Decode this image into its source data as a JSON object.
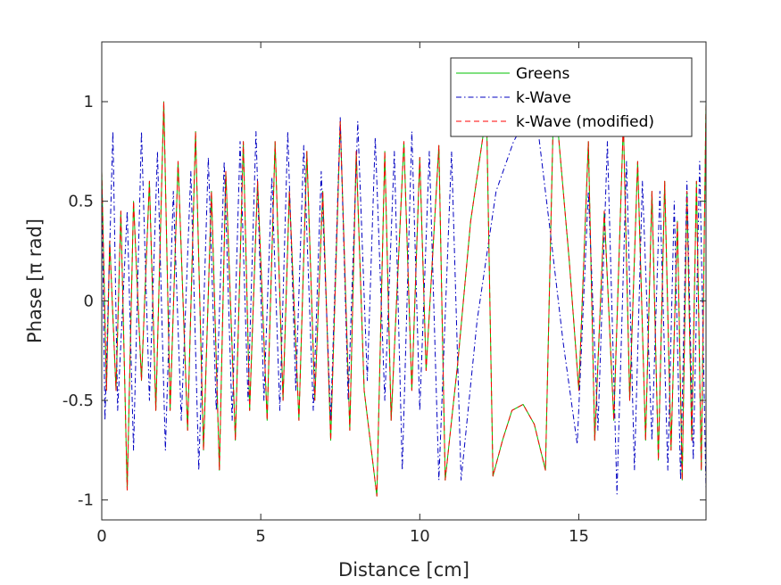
{
  "chart_data": {
    "type": "line",
    "xlabel": "Distance [cm]",
    "ylabel": "Phase [π rad]",
    "xlim": [
      0,
      19
    ],
    "ylim": [
      -1.1,
      1.3
    ],
    "xticks": [
      0,
      5,
      10,
      15
    ],
    "xtick_labels": [
      "0",
      "5",
      "10",
      "15"
    ],
    "yticks": [
      -1,
      -0.5,
      0,
      0.5,
      1
    ],
    "ytick_labels": [
      "-1",
      "-0.5",
      "0",
      "0.5",
      "1"
    ],
    "grid": false,
    "legend_position": "top-right",
    "series": [
      {
        "name": "Greens",
        "color": "#00c000",
        "style": "solid",
        "x": [
          0,
          0.15,
          0.25,
          0.45,
          0.6,
          0.8,
          1.0,
          1.25,
          1.5,
          1.7,
          1.95,
          2.15,
          2.4,
          2.7,
          2.95,
          3.2,
          3.45,
          3.7,
          3.9,
          4.2,
          4.45,
          4.65,
          4.9,
          5.2,
          5.45,
          5.7,
          5.9,
          6.2,
          6.45,
          6.7,
          6.95,
          7.2,
          7.5,
          7.8,
          8.0,
          8.25,
          8.65,
          8.9,
          9.1,
          9.5,
          9.75,
          10.0,
          10.2,
          10.6,
          10.8,
          11.2,
          11.6,
          12.1,
          12.3,
          12.6,
          12.9,
          13.25,
          13.6,
          13.95,
          14.2,
          14.35,
          14.7,
          15.0,
          15.3,
          15.5,
          15.8,
          16.1,
          16.4,
          16.6,
          16.85,
          17.1,
          17.3,
          17.5,
          17.7,
          17.9,
          18.1,
          18.25,
          18.4,
          18.55,
          18.7,
          18.85,
          19.0
        ],
        "y": [
          0.65,
          -0.45,
          0.3,
          -0.45,
          0.45,
          -0.95,
          0.5,
          -0.4,
          0.6,
          -0.55,
          1.0,
          -0.55,
          0.7,
          -0.65,
          0.85,
          -0.75,
          0.55,
          -0.85,
          0.65,
          -0.7,
          0.8,
          -0.55,
          0.6,
          -0.6,
          0.8,
          -0.5,
          0.55,
          -0.6,
          0.75,
          -0.5,
          0.55,
          -0.7,
          0.9,
          -0.65,
          0.75,
          -0.45,
          -0.98,
          0.75,
          -0.6,
          0.8,
          -0.45,
          0.72,
          -0.35,
          0.78,
          -0.9,
          -0.3,
          0.4,
          0.95,
          -0.88,
          -0.7,
          -0.55,
          -0.52,
          -0.62,
          -0.85,
          0.95,
          0.85,
          0.2,
          -0.45,
          0.8,
          -0.7,
          0.45,
          -0.6,
          0.9,
          -0.5,
          0.7,
          -0.7,
          0.55,
          -0.8,
          0.6,
          -0.75,
          0.4,
          -0.9,
          0.55,
          -0.7,
          0.6,
          -0.85,
          1.0
        ]
      },
      {
        "name": "k-Wave",
        "color": "#0000c0",
        "style": "dashdot",
        "x": [
          0,
          0.1,
          0.35,
          0.5,
          0.8,
          1.0,
          1.25,
          1.5,
          1.75,
          2.0,
          2.25,
          2.5,
          2.8,
          3.05,
          3.35,
          3.6,
          3.85,
          4.1,
          4.35,
          4.6,
          4.85,
          5.1,
          5.35,
          5.6,
          5.85,
          6.1,
          6.35,
          6.65,
          6.9,
          7.2,
          7.5,
          7.75,
          8.05,
          8.35,
          8.6,
          8.9,
          9.2,
          9.45,
          9.75,
          10.0,
          10.3,
          10.6,
          11.0,
          11.3,
          11.8,
          12.4,
          12.95,
          13.3,
          13.7,
          14.1,
          14.5,
          14.95,
          15.3,
          15.6,
          15.9,
          16.2,
          16.5,
          16.75,
          17.0,
          17.3,
          17.55,
          17.8,
          18.0,
          18.2,
          18.4,
          18.6,
          18.8,
          19.0
        ],
        "y": [
          0.6,
          -0.6,
          0.85,
          -0.55,
          0.45,
          -0.75,
          0.85,
          -0.5,
          0.75,
          -0.75,
          0.55,
          -0.6,
          0.65,
          -0.85,
          0.72,
          -0.55,
          0.7,
          -0.6,
          0.8,
          -0.5,
          0.85,
          -0.5,
          0.62,
          -0.55,
          0.85,
          -0.45,
          0.78,
          -0.55,
          0.65,
          -0.6,
          0.92,
          -0.5,
          0.9,
          -0.4,
          0.82,
          -0.5,
          0.75,
          -0.85,
          0.85,
          -0.55,
          0.75,
          -0.9,
          0.75,
          -0.9,
          -0.1,
          0.55,
          0.8,
          0.9,
          0.88,
          0.35,
          -0.2,
          -0.72,
          0.55,
          -0.65,
          0.8,
          -0.97,
          0.7,
          -0.85,
          0.6,
          -0.7,
          0.55,
          -0.85,
          0.5,
          -0.9,
          0.6,
          -0.8,
          0.7,
          -0.95
        ]
      },
      {
        "name": "k-Wave (modified)",
        "color": "#ff0000",
        "style": "dashed",
        "x": [
          0,
          0.15,
          0.25,
          0.45,
          0.6,
          0.8,
          1.0,
          1.25,
          1.5,
          1.7,
          1.95,
          2.15,
          2.4,
          2.7,
          2.95,
          3.2,
          3.45,
          3.7,
          3.9,
          4.2,
          4.45,
          4.65,
          4.9,
          5.2,
          5.45,
          5.7,
          5.9,
          6.2,
          6.45,
          6.7,
          6.95,
          7.2,
          7.5,
          7.8,
          8.0,
          8.25,
          8.65,
          8.9,
          9.1,
          9.5,
          9.75,
          10.0,
          10.2,
          10.6,
          10.8,
          11.2,
          11.6,
          12.1,
          12.3,
          12.6,
          12.9,
          13.25,
          13.6,
          13.95,
          14.2,
          14.35,
          14.7,
          15.0,
          15.3,
          15.5,
          15.8,
          16.1,
          16.4,
          16.6,
          16.85,
          17.1,
          17.3,
          17.5,
          17.7,
          17.9,
          18.1,
          18.25,
          18.4,
          18.55,
          18.7,
          18.85,
          19.0
        ],
        "y": [
          0.65,
          -0.45,
          0.3,
          -0.45,
          0.45,
          -0.95,
          0.5,
          -0.4,
          0.6,
          -0.55,
          1.0,
          -0.55,
          0.7,
          -0.65,
          0.85,
          -0.75,
          0.55,
          -0.85,
          0.65,
          -0.7,
          0.8,
          -0.55,
          0.6,
          -0.6,
          0.8,
          -0.5,
          0.55,
          -0.6,
          0.75,
          -0.5,
          0.55,
          -0.7,
          0.9,
          -0.65,
          0.75,
          -0.45,
          -0.98,
          0.75,
          -0.6,
          0.8,
          -0.45,
          0.72,
          -0.35,
          0.78,
          -0.9,
          -0.3,
          0.4,
          0.95,
          -0.88,
          -0.7,
          -0.55,
          -0.52,
          -0.62,
          -0.85,
          0.95,
          0.85,
          0.2,
          -0.45,
          0.8,
          -0.7,
          0.45,
          -0.6,
          0.9,
          -0.5,
          0.7,
          -0.7,
          0.55,
          -0.8,
          0.6,
          -0.75,
          0.4,
          -0.9,
          0.55,
          -0.7,
          0.6,
          -0.85,
          1.0
        ]
      }
    ]
  }
}
